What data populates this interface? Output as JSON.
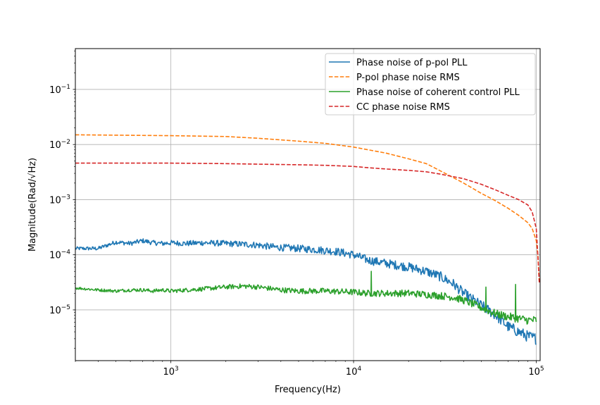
{
  "chart_data": {
    "type": "line",
    "xlabel": "Frequency(Hz)",
    "ylabel": "Magnitude(Rad/√Hz)",
    "xscale": "log",
    "yscale": "log",
    "xlim": [
      300,
      105000
    ],
    "ylim": [
      1.2e-06,
      0.55
    ],
    "grid": true,
    "legend_position": "top-right",
    "xticks": [
      {
        "value": 1000,
        "base": "10",
        "exp": "3"
      },
      {
        "value": 10000,
        "base": "10",
        "exp": "4"
      },
      {
        "value": 100000,
        "base": "10",
        "exp": "5"
      }
    ],
    "yticks": [
      {
        "value": 1e-05,
        "base": "10",
        "exp": "−5"
      },
      {
        "value": 0.0001,
        "base": "10",
        "exp": "−4"
      },
      {
        "value": 0.001,
        "base": "10",
        "exp": "−3"
      },
      {
        "value": 0.01,
        "base": "10",
        "exp": "−2"
      },
      {
        "value": 0.1,
        "base": "10",
        "exp": "−1"
      }
    ],
    "series": [
      {
        "name": "Phase noise of p-pol PLL",
        "color": "#1f77b4",
        "dash": "solid",
        "x": [
          300,
          400,
          500,
          600,
          700,
          800,
          900,
          1000,
          1200,
          1500,
          2000,
          2500,
          3000,
          3500,
          4000,
          5000,
          6000,
          7000,
          8000,
          10000,
          12000,
          15000,
          20000,
          25000,
          30000,
          35000,
          40000,
          50000,
          60000,
          70000,
          80000,
          90000,
          100000
        ],
        "y": [
          0.00013,
          0.00013,
          0.00017,
          0.00016,
          0.00018,
          0.000165,
          0.00016,
          0.000165,
          0.00016,
          0.000165,
          0.00016,
          0.000155,
          0.00015,
          0.00014,
          0.000135,
          0.00013,
          0.000125,
          0.00012,
          0.000115,
          0.0001,
          8e-05,
          7e-05,
          6e-05,
          5e-05,
          4e-05,
          3e-05,
          2e-05,
          1.2e-05,
          8e-06,
          5e-06,
          4e-06,
          3.3e-06,
          3e-06
        ],
        "noise": 0.08
      },
      {
        "name": "P-pol phase noise RMS",
        "color": "#ff7f0e",
        "dash": "dashed",
        "x": [
          300,
          1000,
          2000,
          3000,
          5000,
          7000,
          10000,
          15000,
          20000,
          25000,
          30000,
          40000,
          50000,
          60000,
          70000,
          80000,
          90000,
          95000,
          100000,
          102000,
          104000
        ],
        "y": [
          0.015,
          0.0145,
          0.014,
          0.013,
          0.0115,
          0.0105,
          0.009,
          0.007,
          0.0055,
          0.0045,
          0.0033,
          0.002,
          0.0013,
          0.00095,
          0.0007,
          0.00052,
          0.00038,
          0.0003,
          0.00018,
          0.0001,
          3e-05
        ],
        "noise": 0
      },
      {
        "name": "Phase noise of coherent control PLL",
        "color": "#2ca02c",
        "dash": "solid",
        "x": [
          300,
          400,
          500,
          600,
          700,
          800,
          900,
          1000,
          1500,
          2000,
          2500,
          3000,
          4000,
          5000,
          7000,
          10000,
          12000,
          15000,
          20000,
          25000,
          30000,
          35000,
          40000,
          50000,
          60000,
          70000,
          80000,
          90000,
          100000
        ],
        "y": [
          2.5e-05,
          2.3e-05,
          2.2e-05,
          2.3e-05,
          2.3e-05,
          2.2e-05,
          2.3e-05,
          2.2e-05,
          2.4e-05,
          2.6e-05,
          2.7e-05,
          2.6e-05,
          2.3e-05,
          2.2e-05,
          2.2e-05,
          2.1e-05,
          2e-05,
          2e-05,
          2e-05,
          1.9e-05,
          1.8e-05,
          1.7e-05,
          1.5e-05,
          1.1e-05,
          8.5e-06,
          7.5e-06,
          7e-06,
          6.5e-06,
          6.5e-06
        ],
        "noise": 0.06,
        "spikes": [
          {
            "x": 12500,
            "y": 5e-05
          },
          {
            "x": 53000,
            "y": 2.6e-05
          },
          {
            "x": 77000,
            "y": 2.9e-05
          }
        ]
      },
      {
        "name": "CC phase noise RMS",
        "color": "#d62728",
        "dash": "dashed",
        "x": [
          300,
          1000,
          2000,
          3000,
          5000,
          7000,
          10000,
          12000,
          15000,
          20000,
          25000,
          30000,
          40000,
          50000,
          60000,
          70000,
          80000,
          90000,
          95000,
          100000,
          102000,
          104000
        ],
        "y": [
          0.0046,
          0.0046,
          0.0045,
          0.0044,
          0.0043,
          0.0042,
          0.004,
          0.0038,
          0.0036,
          0.0034,
          0.0032,
          0.0029,
          0.0024,
          0.0019,
          0.0015,
          0.0012,
          0.001,
          0.0008,
          0.0006,
          0.0003,
          0.0001,
          3e-05
        ],
        "noise": 0
      }
    ]
  }
}
